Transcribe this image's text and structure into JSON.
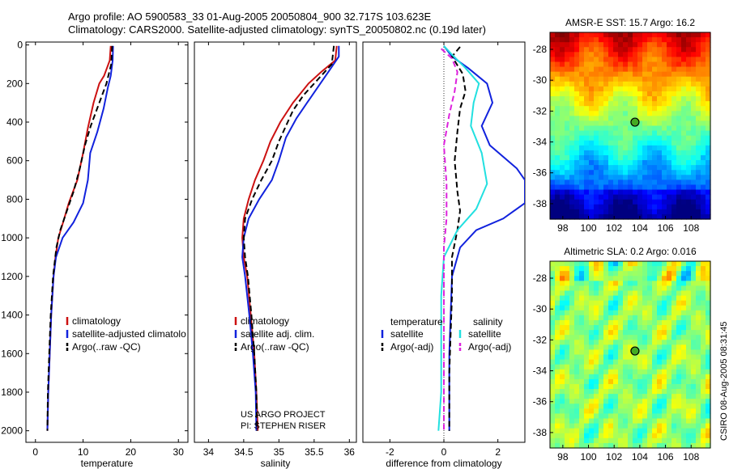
{
  "header": {
    "title_line1": "Argo profile: AO 5900583_33 01-Aug-2005 20050804_900 32.717S 103.623E",
    "title_line2": "Climatology: CARS2000. Satellite-adjusted climatology: synTS_20050802.nc (0.19d later)"
  },
  "credit": "CSIRO 08-Aug-2005 08:31:45",
  "colors": {
    "climatology": "#cc1111",
    "satellite": "#1122dd",
    "argo": "#000000",
    "cyan": "#22e0e0",
    "magenta": "#dd22dd"
  },
  "chart_data": [
    {
      "type": "line",
      "id": "temperature",
      "xlabel": "temperature",
      "ylabel": "",
      "xlim": [
        -2,
        32
      ],
      "ylim": [
        2060,
        -15
      ],
      "xticks": [
        0,
        10,
        20,
        30
      ],
      "yticks": [
        0,
        200,
        400,
        600,
        800,
        1000,
        1200,
        1400,
        1600,
        1800,
        2000
      ],
      "legend": [
        "climatology",
        "satellite-adjusted climatolo",
        "Argo(..raw -QC)"
      ],
      "series": [
        {
          "name": "climatology",
          "color": "#cc1111",
          "dash": "",
          "points": [
            [
              15.8,
              5
            ],
            [
              15.6,
              80
            ],
            [
              14.4,
              160
            ],
            [
              13.4,
              200
            ],
            [
              12.2,
              300
            ],
            [
              11.0,
              430
            ],
            [
              10.0,
              560
            ],
            [
              8.8,
              700
            ],
            [
              7.0,
              820
            ],
            [
              5.8,
              920
            ],
            [
              4.8,
              1000
            ],
            [
              4.2,
              1100
            ],
            [
              3.8,
              1200
            ],
            [
              3.3,
              1400
            ],
            [
              3.0,
              1600
            ],
            [
              2.7,
              1800
            ],
            [
              2.5,
              2000
            ]
          ]
        },
        {
          "name": "satellite-adjusted climatolo",
          "color": "#1122dd",
          "dash": "",
          "points": [
            [
              16.3,
              5
            ],
            [
              16.2,
              80
            ],
            [
              15.8,
              160
            ],
            [
              15.2,
              220
            ],
            [
              14.3,
              330
            ],
            [
              13.0,
              450
            ],
            [
              11.5,
              560
            ],
            [
              11.0,
              700
            ],
            [
              10.0,
              820
            ],
            [
              8.0,
              920
            ],
            [
              5.7,
              1000
            ],
            [
              4.3,
              1100
            ],
            [
              3.8,
              1200
            ],
            [
              3.3,
              1400
            ],
            [
              3.0,
              1600
            ],
            [
              2.7,
              1800
            ],
            [
              2.5,
              2000
            ]
          ]
        },
        {
          "name": "Argo(..raw -QC)",
          "color": "#000000",
          "dash": "7,4",
          "points": [
            [
              16.1,
              5
            ],
            [
              15.9,
              100
            ],
            [
              14.9,
              200
            ],
            [
              13.4,
              300
            ],
            [
              11.6,
              420
            ],
            [
              10.4,
              520
            ],
            [
              9.3,
              640
            ],
            [
              8.0,
              760
            ],
            [
              6.6,
              860
            ],
            [
              5.2,
              960
            ],
            [
              4.4,
              1050
            ],
            [
              3.7,
              1200
            ],
            [
              3.2,
              1400
            ],
            [
              2.9,
              1600
            ],
            [
              2.6,
              1800
            ],
            [
              2.5,
              2000
            ]
          ]
        }
      ]
    },
    {
      "type": "line",
      "id": "salinity",
      "xlabel": "salinity",
      "ylabel": "",
      "xlim": [
        33.8,
        36.1
      ],
      "ylim": [
        2060,
        -15
      ],
      "xticks": [
        34,
        34.5,
        35,
        35.5,
        36
      ],
      "xticklabels": [
        "34",
        "34.5",
        "35",
        "35.5",
        "36"
      ],
      "legend": [
        "climatology",
        "satellite adj. clim.",
        "Argo(..raw -QC)"
      ],
      "annotation": [
        "US ARGO PROJECT",
        "PI: STEPHEN RISER"
      ],
      "series": [
        {
          "name": "climatology",
          "color": "#cc1111",
          "dash": "",
          "points": [
            [
              35.82,
              5
            ],
            [
              35.8,
              80
            ],
            [
              35.6,
              140
            ],
            [
              35.42,
              200
            ],
            [
              35.2,
              300
            ],
            [
              35.02,
              400
            ],
            [
              34.88,
              500
            ],
            [
              34.78,
              600
            ],
            [
              34.66,
              700
            ],
            [
              34.57,
              800
            ],
            [
              34.5,
              900
            ],
            [
              34.48,
              1000
            ],
            [
              34.5,
              1100
            ],
            [
              34.55,
              1200
            ],
            [
              34.6,
              1400
            ],
            [
              34.65,
              1600
            ],
            [
              34.68,
              1800
            ],
            [
              34.7,
              2000
            ]
          ]
        },
        {
          "name": "satellite adj. clim.",
          "color": "#1122dd",
          "dash": "",
          "points": [
            [
              35.85,
              5
            ],
            [
              35.85,
              60
            ],
            [
              35.72,
              130
            ],
            [
              35.55,
              220
            ],
            [
              35.4,
              300
            ],
            [
              35.25,
              380
            ],
            [
              35.1,
              480
            ],
            [
              35.0,
              600
            ],
            [
              34.9,
              700
            ],
            [
              34.72,
              800
            ],
            [
              34.57,
              900
            ],
            [
              34.5,
              1000
            ],
            [
              34.48,
              1100
            ],
            [
              34.52,
              1200
            ],
            [
              34.58,
              1400
            ],
            [
              34.63,
              1600
            ],
            [
              34.67,
              1800
            ],
            [
              34.68,
              2000
            ]
          ]
        },
        {
          "name": "Argo(..raw -QC)",
          "color": "#000000",
          "dash": "7,4",
          "points": [
            [
              35.78,
              5
            ],
            [
              35.75,
              100
            ],
            [
              35.55,
              180
            ],
            [
              35.35,
              260
            ],
            [
              35.2,
              340
            ],
            [
              35.1,
              420
            ],
            [
              35.0,
              500
            ],
            [
              34.9,
              600
            ],
            [
              34.75,
              700
            ],
            [
              34.62,
              800
            ],
            [
              34.52,
              900
            ],
            [
              34.5,
              1000
            ],
            [
              34.52,
              1100
            ],
            [
              34.56,
              1200
            ],
            [
              34.61,
              1400
            ],
            [
              34.65,
              1600
            ],
            [
              34.68,
              1800
            ],
            [
              34.69,
              2000
            ]
          ]
        }
      ]
    },
    {
      "type": "line",
      "id": "difference",
      "xlabel": "difference from climatology",
      "ylabel": "",
      "xlim": [
        -3,
        3
      ],
      "ylim": [
        2060,
        -15
      ],
      "xticks": [
        -2,
        0,
        2
      ],
      "zero_line": true,
      "legend_headers": [
        "temperature",
        "salinity"
      ],
      "legend": [
        {
          "label": "satellite",
          "group": "temperature"
        },
        {
          "label": "Argo(-adj)",
          "group": "temperature"
        },
        {
          "label": "satellite",
          "group": "salinity"
        },
        {
          "label": "Argo(-adj)",
          "group": "salinity"
        }
      ],
      "series": [
        {
          "name": "satellite",
          "group": "temperature",
          "color": "#1122dd",
          "dash": "",
          "points": [
            [
              0.0,
              5
            ],
            [
              0.3,
              60
            ],
            [
              0.9,
              120
            ],
            [
              1.6,
              200
            ],
            [
              1.8,
              300
            ],
            [
              1.4,
              420
            ],
            [
              1.7,
              520
            ],
            [
              2.7,
              640
            ],
            [
              3.0,
              700
            ],
            [
              3.0,
              820
            ],
            [
              2.2,
              900
            ],
            [
              1.2,
              960
            ],
            [
              0.6,
              1050
            ],
            [
              0.3,
              1200
            ],
            [
              0.2,
              1600
            ],
            [
              0.2,
              2000
            ]
          ]
        },
        {
          "name": "Argo(-adj)",
          "group": "temperature",
          "color": "#000000",
          "dash": "7,4",
          "points": [
            [
              0.6,
              10
            ],
            [
              0.3,
              60
            ],
            [
              0.7,
              150
            ],
            [
              0.8,
              240
            ],
            [
              0.6,
              330
            ],
            [
              0.5,
              450
            ],
            [
              0.4,
              600
            ],
            [
              0.5,
              760
            ],
            [
              0.6,
              860
            ],
            [
              0.5,
              960
            ],
            [
              0.3,
              1100
            ],
            [
              0.3,
              1300
            ],
            [
              0.2,
              1700
            ],
            [
              0.2,
              2000
            ]
          ]
        },
        {
          "name": "satellite",
          "group": "salinity",
          "color": "#22e0e0",
          "dash": "",
          "points": [
            [
              0.0,
              5
            ],
            [
              0.3,
              50
            ],
            [
              0.8,
              120
            ],
            [
              1.3,
              200
            ],
            [
              1.1,
              300
            ],
            [
              1.0,
              420
            ],
            [
              1.4,
              560
            ],
            [
              1.6,
              720
            ],
            [
              1.2,
              850
            ],
            [
              0.5,
              960
            ],
            [
              0.0,
              1100
            ],
            [
              -0.1,
              1300
            ],
            [
              -0.1,
              1600
            ],
            [
              -0.1,
              1800
            ],
            [
              -0.2,
              2000
            ]
          ]
        },
        {
          "name": "Argo(-adj)",
          "group": "salinity",
          "color": "#dd22dd",
          "dash": "7,4",
          "points": [
            [
              -0.1,
              20
            ],
            [
              0.3,
              70
            ],
            [
              0.5,
              140
            ],
            [
              0.4,
              240
            ],
            [
              0.2,
              360
            ],
            [
              0.0,
              520
            ],
            [
              0.1,
              720
            ],
            [
              0.1,
              900
            ],
            [
              0.0,
              1050
            ],
            [
              0.0,
              1300
            ],
            [
              0.0,
              2000
            ]
          ]
        }
      ]
    },
    {
      "type": "heatmap",
      "id": "sst_map",
      "title": "AMSR-E SST: 15.7 Argo: 16.2",
      "xlim": [
        97,
        109.5
      ],
      "ylim": [
        -39,
        -26.9
      ],
      "xticks": [
        98,
        100,
        102,
        104,
        106,
        108
      ],
      "yticks": [
        -28,
        -30,
        -32,
        -34,
        -36,
        -38
      ],
      "marker": {
        "lon": 103.623,
        "lat": -32.717
      },
      "colormap": "jet"
    },
    {
      "type": "heatmap",
      "id": "sla_map",
      "title": "Altimetric SLA: 0.2  Argo: 0.016",
      "xlim": [
        97,
        109.5
      ],
      "ylim": [
        -39,
        -26.9
      ],
      "xticks": [
        98,
        100,
        102,
        104,
        106,
        108
      ],
      "yticks": [
        -28,
        -30,
        -32,
        -34,
        -36,
        -38
      ],
      "marker": {
        "lon": 103.623,
        "lat": -32.717
      },
      "colormap": "jet"
    }
  ]
}
